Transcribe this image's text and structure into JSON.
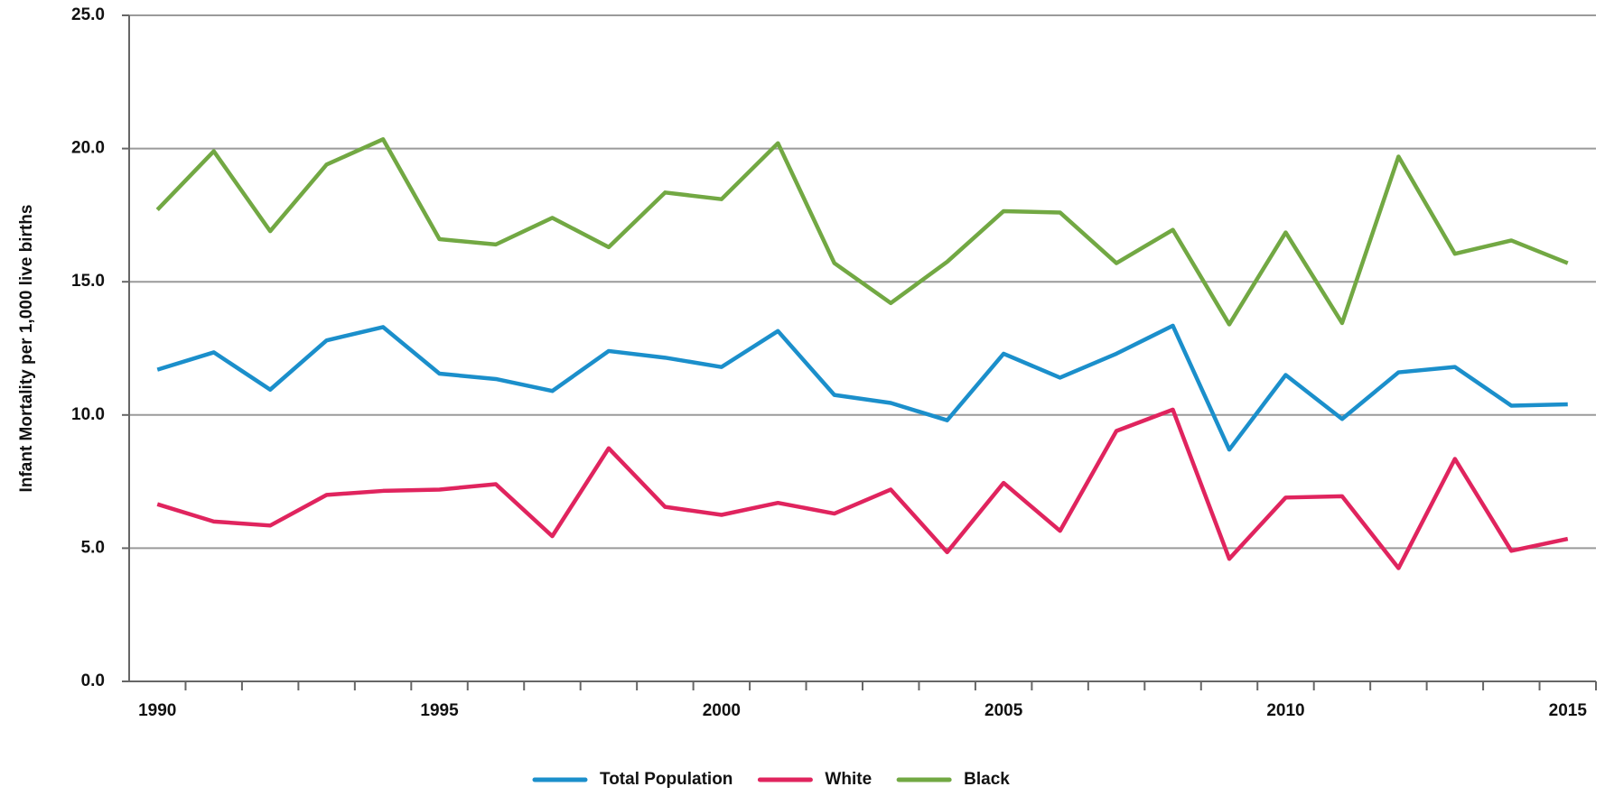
{
  "chart_data": {
    "type": "line",
    "y_label": "Infant Mortality per 1,000 live births",
    "categories": [
      "1990",
      null,
      null,
      null,
      null,
      "1995",
      null,
      null,
      null,
      null,
      "2000",
      null,
      null,
      null,
      null,
      "2005",
      null,
      null,
      null,
      null,
      "2010",
      null,
      null,
      null,
      null,
      "2015"
    ],
    "series": [
      {
        "name": "Total Population",
        "color": "#1b8fcb",
        "values": [
          11.7,
          12.35,
          10.95,
          12.8,
          13.3,
          11.55,
          11.35,
          10.9,
          12.4,
          12.15,
          11.8,
          13.15,
          10.75,
          10.45,
          9.8,
          12.3,
          11.4,
          12.3,
          13.35,
          8.7,
          11.5,
          9.85,
          11.6,
          11.8,
          10.35,
          10.4
        ]
      },
      {
        "name": "White",
        "color": "#e0245e",
        "values": [
          6.65,
          6.0,
          5.85,
          7.0,
          7.15,
          7.2,
          7.4,
          5.45,
          8.75,
          6.55,
          6.25,
          6.7,
          6.3,
          7.2,
          4.85,
          7.45,
          5.65,
          9.4,
          10.2,
          4.6,
          6.9,
          6.95,
          4.25,
          8.35,
          4.9,
          5.35
        ]
      },
      {
        "name": "Black",
        "color": "#72a843",
        "values": [
          17.7,
          19.9,
          16.9,
          19.4,
          20.35,
          16.6,
          16.4,
          17.4,
          16.3,
          18.35,
          18.1,
          20.2,
          15.7,
          14.2,
          15.75,
          17.65,
          17.6,
          15.7,
          16.95,
          13.4,
          16.85,
          13.45,
          19.7,
          16.05,
          16.55,
          15.7
        ]
      }
    ],
    "ylim": [
      0,
      25
    ],
    "yticks": [
      {
        "value": 0,
        "label": "0.0"
      },
      {
        "value": 5,
        "label": "5.0"
      },
      {
        "value": 10,
        "label": "10.0"
      },
      {
        "value": 15,
        "label": "15.0"
      },
      {
        "value": 20,
        "label": "20.0"
      },
      {
        "value": 25,
        "label": "25.0"
      }
    ],
    "grid": true,
    "legend": "bottom"
  }
}
